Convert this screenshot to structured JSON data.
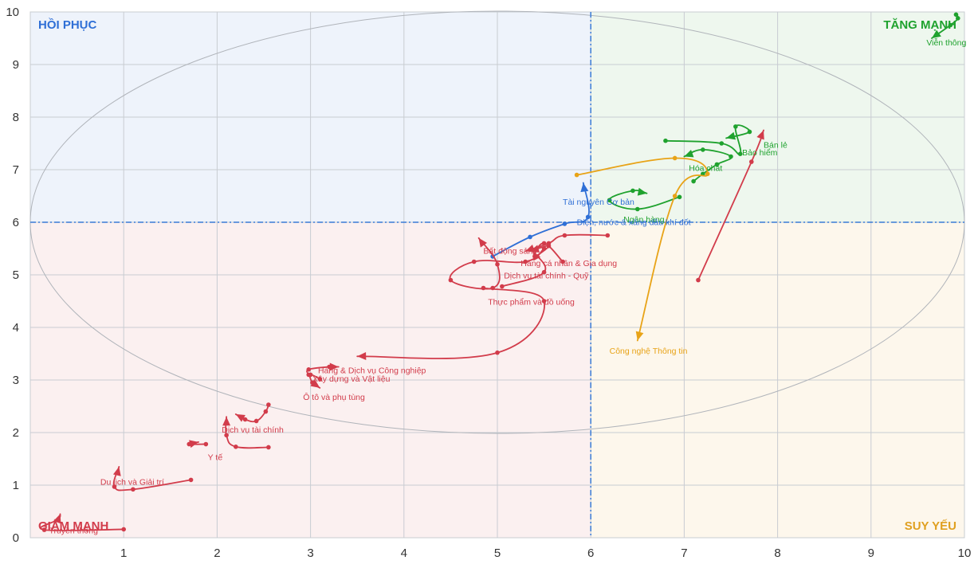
{
  "chart_data": {
    "type": "line",
    "xlim": [
      0,
      10
    ],
    "ylim": [
      0,
      10
    ],
    "x_ticks": [
      "1",
      "2",
      "3",
      "4",
      "5",
      "6",
      "7",
      "8",
      "9",
      "10"
    ],
    "y_ticks": [
      "0",
      "1",
      "2",
      "3",
      "4",
      "5",
      "6",
      "7",
      "8",
      "9",
      "10"
    ],
    "grid": true,
    "center": [
      6,
      6
    ],
    "quadrants": [
      {
        "name": "HỒI PHỤC",
        "position": "top-left",
        "color": "#2f6fd6",
        "bg": "#eef3fb"
      },
      {
        "name": "TĂNG MẠNH",
        "position": "top-right",
        "color": "#1fa22e",
        "bg": "#eef7ee"
      },
      {
        "name": "SUY YẾU",
        "position": "bottom-right",
        "color": "#e0a020",
        "bg": "#fdf7ec"
      },
      {
        "name": "GIẢM MẠNH",
        "position": "bottom-left",
        "color": "#d23c4b",
        "bg": "#fbf0f0"
      }
    ],
    "colors": {
      "red": "#d23c4b",
      "green": "#1fa22e",
      "blue": "#2f6fd6",
      "orange": "#e8a317",
      "divider": "#3a7bd5"
    },
    "series": [
      {
        "name": "Viễn thông",
        "color": "#1fa22e",
        "points": [
          [
            9.91,
            9.95
          ],
          [
            9.93,
            9.88
          ],
          [
            9.85,
            9.75
          ],
          [
            9.65,
            9.5
          ]
        ]
      },
      {
        "name": "Bán lẻ",
        "color": "#d23c4b",
        "points": [
          [
            7.15,
            4.9
          ],
          [
            7.72,
            7.15
          ],
          [
            7.85,
            7.75
          ]
        ]
      },
      {
        "name": "Bảo hiểm",
        "color": "#1fa22e",
        "points": [
          [
            6.8,
            7.55
          ],
          [
            7.4,
            7.5
          ],
          [
            7.6,
            7.3
          ],
          [
            7.55,
            7.82
          ],
          [
            7.7,
            7.72
          ],
          [
            7.45,
            7.6
          ]
        ]
      },
      {
        "name": "Hóa chất",
        "color": "#1fa22e",
        "points": [
          [
            7.1,
            6.78
          ],
          [
            7.2,
            6.92
          ],
          [
            7.35,
            7.1
          ],
          [
            7.5,
            7.25
          ],
          [
            7.2,
            7.38
          ],
          [
            7.0,
            7.25
          ]
        ]
      },
      {
        "name": "Ngân hàng",
        "color": "#1fa22e",
        "points": [
          [
            6.95,
            6.48
          ],
          [
            6.5,
            6.25
          ],
          [
            6.2,
            6.42
          ],
          [
            6.45,
            6.6
          ],
          [
            6.6,
            6.55
          ]
        ]
      },
      {
        "name": "Công nghệ Thông tin",
        "color": "#e8a317",
        "points": [
          [
            5.85,
            6.9
          ],
          [
            6.9,
            7.22
          ],
          [
            7.25,
            6.92
          ],
          [
            6.9,
            6.5
          ],
          [
            6.5,
            3.75
          ]
        ]
      },
      {
        "name": "Tài nguyên Cơ bản",
        "color": "#2f6fd6",
        "points": [
          [
            4.95,
            5.35
          ],
          [
            5.35,
            5.72
          ],
          [
            5.72,
            5.97
          ],
          [
            5.97,
            6.1
          ],
          [
            5.92,
            6.75
          ]
        ]
      },
      {
        "name": "Điện, nước & xăng dầu khí đốt",
        "color": "#d23c4b",
        "points": [
          [
            6.18,
            5.75
          ],
          [
            5.72,
            5.75
          ],
          [
            5.55,
            5.6
          ],
          [
            5.3,
            5.45
          ]
        ]
      },
      {
        "name": "Bất động sản",
        "color": "#d23c4b",
        "points": [
          [
            5.5,
            5.5
          ],
          [
            5.3,
            5.25
          ],
          [
            4.75,
            5.25
          ],
          [
            4.5,
            4.9
          ],
          [
            4.95,
            4.75
          ],
          [
            5.0,
            5.2
          ],
          [
            4.8,
            5.7
          ]
        ]
      },
      {
        "name": "Hàng cá nhân & Gia dụng",
        "color": "#d23c4b",
        "points": [
          [
            5.7,
            5.25
          ],
          [
            5.5,
            5.6
          ],
          [
            5.4,
            5.35
          ],
          [
            5.55,
            5.55
          ],
          [
            5.35,
            5.45
          ]
        ]
      },
      {
        "name": "Dịch vụ tài chính - Quỹ",
        "color": "#d23c4b",
        "points": [
          [
            5.05,
            4.78
          ],
          [
            5.5,
            5.05
          ],
          [
            5.38,
            5.45
          ]
        ]
      },
      {
        "name": "Thực phẩm và đồ uống",
        "color": "#d23c4b",
        "points": [
          [
            4.85,
            4.75
          ],
          [
            5.5,
            4.5
          ],
          [
            5.0,
            3.52
          ],
          [
            3.5,
            3.45
          ]
        ]
      },
      {
        "name": "Hàng & Dịch vụ Công nghiệp",
        "color": "#d23c4b",
        "points": [
          [
            2.98,
            3.1
          ],
          [
            2.98,
            3.2
          ],
          [
            3.2,
            3.25
          ],
          [
            3.3,
            3.25
          ]
        ]
      },
      {
        "name": "Xây dựng và Vật liệu",
        "color": "#d23c4b",
        "points": [
          [
            3.1,
            3.02
          ],
          [
            3.0,
            3.1
          ],
          [
            3.02,
            2.95
          ],
          [
            3.1,
            2.85
          ]
        ]
      },
      {
        "name": "Ô tô và phụ tùng",
        "color": "#d23c4b",
        "points": [
          [
            2.55,
            2.53
          ],
          [
            2.52,
            2.4
          ],
          [
            2.42,
            2.22
          ],
          [
            2.3,
            2.25
          ],
          [
            2.2,
            2.35
          ]
        ]
      },
      {
        "name": "Dịch vụ tài chính",
        "color": "#d23c4b",
        "points": [
          [
            2.55,
            1.72
          ],
          [
            2.2,
            1.73
          ],
          [
            2.1,
            1.95
          ],
          [
            2.1,
            2.3
          ]
        ]
      },
      {
        "name": "Y tế",
        "color": "#d23c4b",
        "points": [
          [
            1.88,
            1.78
          ],
          [
            1.7,
            1.78
          ],
          [
            1.8,
            1.82
          ]
        ]
      },
      {
        "name": "Du lịch và Giải trí",
        "color": "#d23c4b",
        "points": [
          [
            1.72,
            1.1
          ],
          [
            1.1,
            0.92
          ],
          [
            0.9,
            0.97
          ],
          [
            0.95,
            1.35
          ]
        ]
      },
      {
        "name": "Truyền thông",
        "color": "#d23c4b",
        "points": [
          [
            1.0,
            0.16
          ],
          [
            0.15,
            0.15
          ],
          [
            0.3,
            0.35
          ],
          [
            0.32,
            0.45
          ]
        ]
      }
    ],
    "labels": [
      {
        "text": "Viễn thông",
        "x": 10.02,
        "y": 9.36,
        "color": "#1fa22e",
        "anchor": "end"
      },
      {
        "text": "Bán lẻ",
        "x": 7.85,
        "y": 7.42,
        "color": "#1fa22e",
        "anchor": "start"
      },
      {
        "text": "Bảo hiểm",
        "x": 7.62,
        "y": 7.27,
        "color": "#1fa22e",
        "anchor": "start"
      },
      {
        "text": "Hóa chất",
        "x": 7.05,
        "y": 6.98,
        "color": "#1fa22e",
        "anchor": "start"
      },
      {
        "text": "Ngân hàng",
        "x": 6.35,
        "y": 6.0,
        "color": "#1fa22e",
        "anchor": "start"
      },
      {
        "text": "Tài nguyên Cơ bản",
        "x": 5.7,
        "y": 6.33,
        "color": "#2f6fd6",
        "anchor": "start"
      },
      {
        "text": "Điện, nước & xăng dầu khí đốt",
        "x": 5.85,
        "y": 5.95,
        "color": "#2f6fd6",
        "anchor": "start"
      },
      {
        "text": "Công nghệ Thông tin",
        "x": 6.2,
        "y": 3.5,
        "color": "#e8a317",
        "anchor": "start"
      },
      {
        "text": "Bất động sản",
        "x": 4.85,
        "y": 5.4,
        "color": "#d23c4b",
        "anchor": "start"
      },
      {
        "text": "Hàng cá nhân & Gia dụng",
        "x": 5.25,
        "y": 5.17,
        "color": "#d23c4b",
        "anchor": "start"
      },
      {
        "text": "Dịch vụ tài chính - Quỹ",
        "x": 5.07,
        "y": 4.93,
        "color": "#d23c4b",
        "anchor": "start"
      },
      {
        "text": "Thực phẩm và đồ uống",
        "x": 4.9,
        "y": 4.43,
        "color": "#d23c4b",
        "anchor": "start"
      },
      {
        "text": "Hàng & Dịch vụ Công nghiệp",
        "x": 3.08,
        "y": 3.13,
        "color": "#d23c4b",
        "anchor": "start"
      },
      {
        "text": "Xây dựng và Vật liệu",
        "x": 3.02,
        "y": 2.97,
        "color": "#d23c4b",
        "anchor": "start"
      },
      {
        "text": "Ô tô và phụ tùng",
        "x": 2.92,
        "y": 2.62,
        "color": "#d23c4b",
        "anchor": "start"
      },
      {
        "text": "Dịch vụ tài chính",
        "x": 2.05,
        "y": 2.0,
        "color": "#d23c4b",
        "anchor": "start"
      },
      {
        "text": "Y tế",
        "x": 1.9,
        "y": 1.48,
        "color": "#d23c4b",
        "anchor": "start"
      },
      {
        "text": "Du lịch và Giải trí",
        "x": 0.75,
        "y": 1.01,
        "color": "#d23c4b",
        "anchor": "start"
      },
      {
        "text": "Truyền thông",
        "x": 0.2,
        "y": 0.08,
        "color": "#d23c4b",
        "anchor": "start"
      }
    ]
  }
}
